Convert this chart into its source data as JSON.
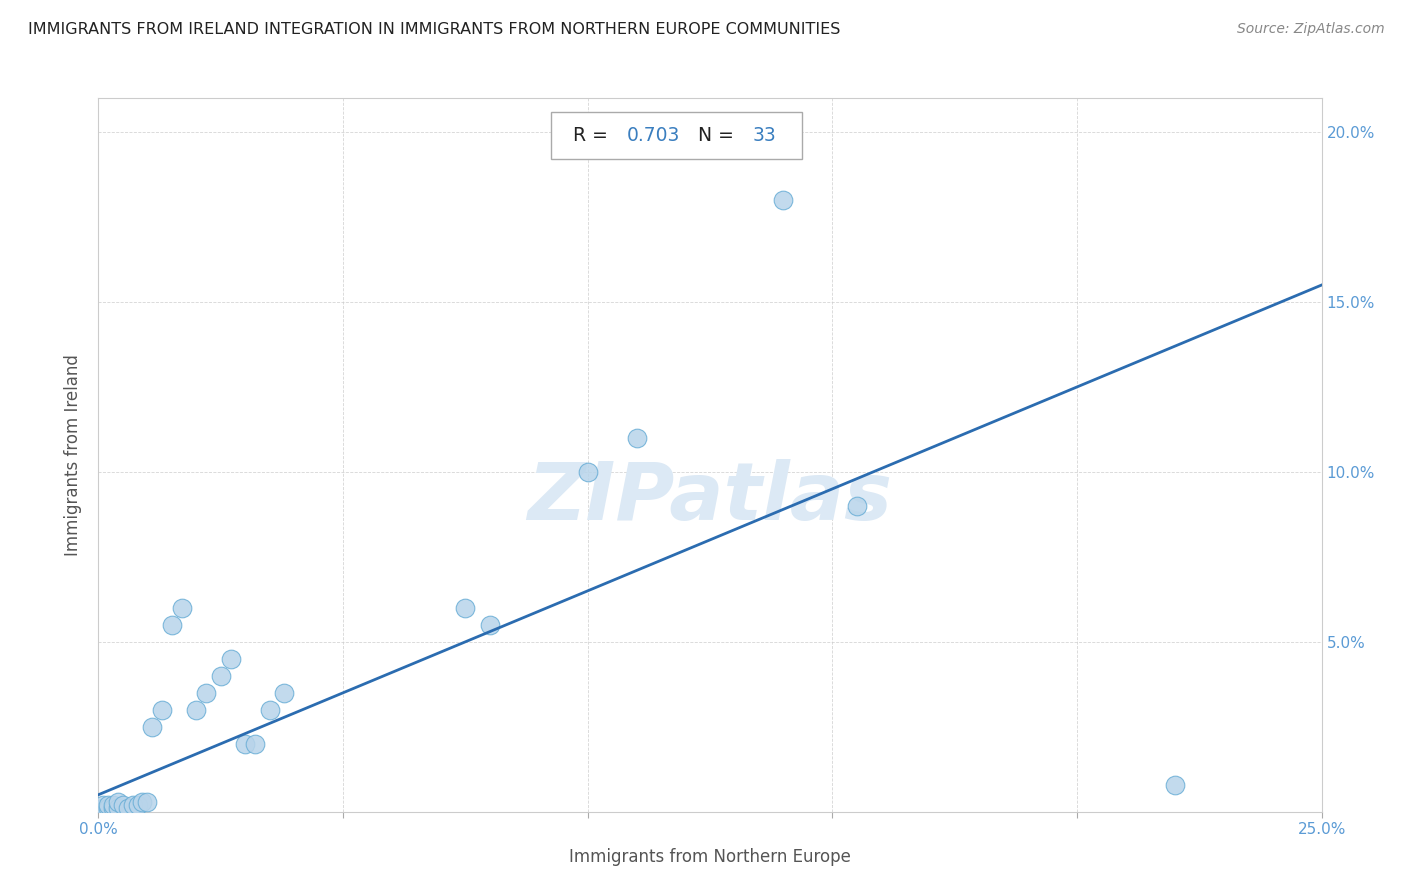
{
  "title": "IMMIGRANTS FROM IRELAND INTEGRATION IN IMMIGRANTS FROM NORTHERN EUROPE COMMUNITIES",
  "source": "Source: ZipAtlas.com",
  "xlabel": "Immigrants from Northern Europe",
  "ylabel": "Immigrants from Ireland",
  "R": 0.703,
  "N": 33,
  "xlim": [
    0,
    0.25
  ],
  "ylim": [
    0,
    0.21
  ],
  "scatter_x": [
    0.001,
    0.001,
    0.002,
    0.002,
    0.003,
    0.003,
    0.004,
    0.004,
    0.005,
    0.006,
    0.007,
    0.008,
    0.009,
    0.01,
    0.011,
    0.013,
    0.015,
    0.017,
    0.02,
    0.022,
    0.025,
    0.027,
    0.03,
    0.032,
    0.035,
    0.038,
    0.075,
    0.08,
    0.1,
    0.11,
    0.14,
    0.155,
    0.22
  ],
  "scatter_y": [
    0.001,
    0.002,
    0.001,
    0.002,
    0.001,
    0.002,
    0.001,
    0.003,
    0.002,
    0.001,
    0.002,
    0.002,
    0.003,
    0.003,
    0.025,
    0.03,
    0.055,
    0.06,
    0.03,
    0.035,
    0.04,
    0.045,
    0.02,
    0.02,
    0.03,
    0.035,
    0.06,
    0.055,
    0.1,
    0.11,
    0.18,
    0.09,
    0.008
  ],
  "scatter_color": "#b8d4ea",
  "scatter_edge_color": "#6aaed6",
  "line_color": "#2b6cb0",
  "regression_x0": 0.0,
  "regression_y0": 0.005,
  "regression_x1": 0.25,
  "regression_y1": 0.155,
  "title_color": "#222222",
  "source_color": "#888888",
  "tick_color": "#5b9bd5",
  "label_color": "#555555",
  "background_color": "#ffffff",
  "watermark_text": "ZIPatlas",
  "watermark_color": "#dce9f5",
  "stat_text_color": "#222222",
  "stat_value_color": "#3a7ebf"
}
